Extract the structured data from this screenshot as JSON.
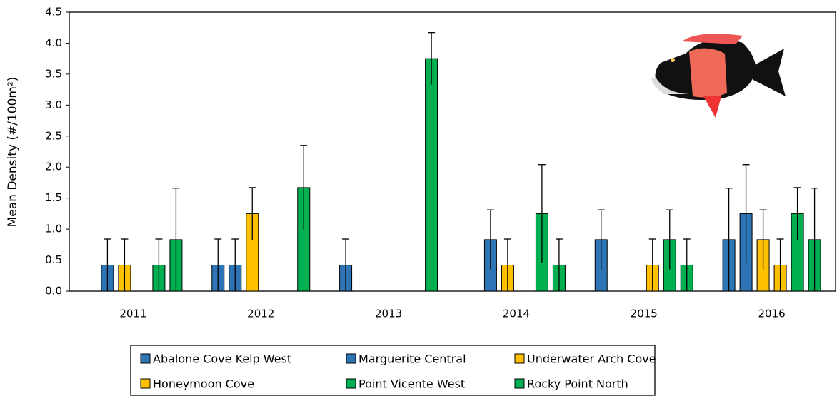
{
  "chart_data": {
    "type": "bar",
    "ylabel": "Mean Density (#/100m²)",
    "categories": [
      "2011",
      "2012",
      "2013",
      "2014",
      "2015",
      "2016"
    ],
    "series": [
      {
        "name": "Abalone Cove Kelp West",
        "color": "#2e75b6",
        "values": [
          null,
          0.42,
          0.42,
          null,
          0.83,
          0.83
        ],
        "errors": [
          null,
          0.42,
          0.42,
          null,
          0.48,
          0.83
        ]
      },
      {
        "name": "Marguerite Central",
        "color": "#2e75b6",
        "values": [
          0.42,
          0.42,
          null,
          0.83,
          null,
          1.25
        ],
        "errors": [
          0.42,
          0.42,
          null,
          0.48,
          null,
          0.79
        ]
      },
      {
        "name": "Underwater Arch Cove",
        "color": "#ffc000",
        "values": [
          0.42,
          1.25,
          null,
          0.42,
          null,
          0.83
        ],
        "errors": [
          0.42,
          0.42,
          null,
          0.42,
          null,
          0.48
        ]
      },
      {
        "name": "Honeymoon Cove",
        "color": "#ffc000",
        "values": [
          null,
          null,
          null,
          null,
          0.42,
          0.42
        ],
        "errors": [
          null,
          null,
          null,
          null,
          0.42,
          0.42
        ]
      },
      {
        "name": "Point Vicente West",
        "color": "#00b050",
        "values": [
          0.42,
          null,
          null,
          1.25,
          0.83,
          1.25
        ],
        "errors": [
          0.42,
          null,
          null,
          0.79,
          0.48,
          0.42
        ]
      },
      {
        "name": "Rocky Point North",
        "color": "#00b050",
        "values": [
          0.83,
          1.67,
          3.75,
          0.42,
          0.42,
          0.83
        ],
        "errors": [
          0.83,
          0.68,
          0.42,
          0.42,
          0.42,
          0.83
        ]
      }
    ],
    "ylim": [
      0,
      4.5
    ],
    "yticks": [
      {
        "value": 0,
        "label": "0.0"
      },
      {
        "value": 0.5,
        "label": "0.5"
      },
      {
        "value": 1,
        "label": "1.0"
      },
      {
        "value": 1.5,
        "label": "1.5"
      },
      {
        "value": 2,
        "label": "2.0"
      },
      {
        "value": 2.5,
        "label": "2.5"
      },
      {
        "value": 3,
        "label": "3.0"
      },
      {
        "value": 3.5,
        "label": "3.5"
      },
      {
        "value": 4,
        "label": "4.0"
      },
      {
        "value": 4.5,
        "label": "4.5"
      }
    ]
  }
}
